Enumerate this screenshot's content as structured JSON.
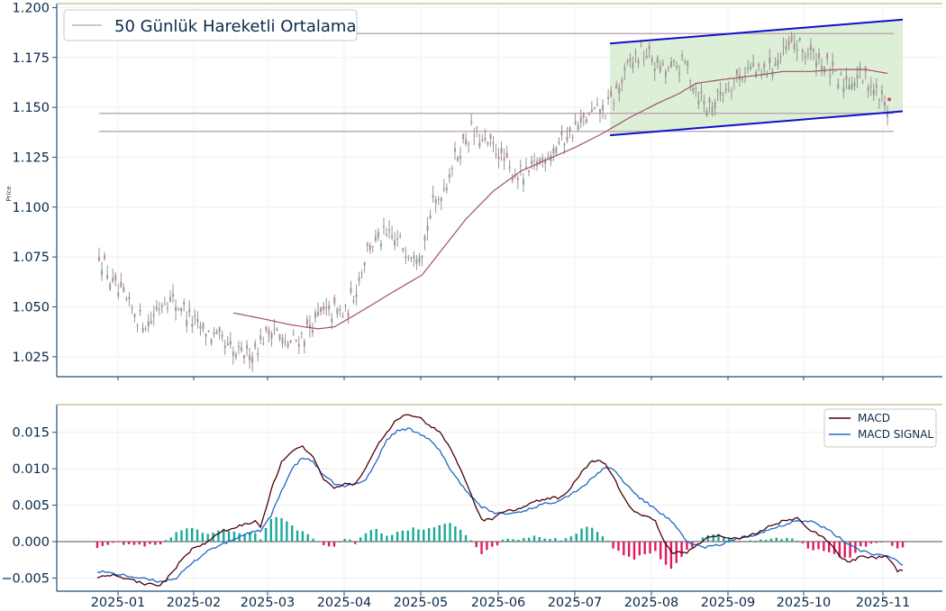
{
  "colors": {
    "axis": "#1f4e79",
    "top_border": "#c9b48a",
    "candle": "#8a8a8a",
    "sma": "#a0526a",
    "hline": "#b9a3b2",
    "channel": "#1010cc",
    "channel_fill": "#cfe8c6",
    "macd": "#4a0010",
    "signal": "#1f68c4",
    "hist_pos": "#1aa99a",
    "hist_neg": "#e3185e",
    "zero": "#8a8a8a"
  },
  "chart_data": [
    {
      "type": "candlestick",
      "ylabel": "Price",
      "ylim": [
        1.015,
        1.202
      ],
      "y_ticks": [
        "1.025",
        "1.050",
        "1.075",
        "1.100",
        "1.125",
        "1.150",
        "1.175",
        "1.200"
      ],
      "x_ticks": [
        "2025-01",
        "2025-02",
        "2025-03",
        "2025-04",
        "2025-05",
        "2025-06",
        "2025-07",
        "2025-08",
        "2025-09",
        "2025-10",
        "2025-11"
      ],
      "legend": [
        "50 Günlük Hareketli Ortalama"
      ],
      "price_anchors": [
        [
          0,
          1.077
        ],
        [
          4,
          1.063
        ],
        [
          8,
          1.055
        ],
        [
          14,
          1.045
        ],
        [
          18,
          1.042
        ],
        [
          24,
          1.055
        ],
        [
          30,
          1.05
        ],
        [
          36,
          1.04
        ],
        [
          42,
          1.035
        ],
        [
          46,
          1.03
        ],
        [
          50,
          1.025
        ],
        [
          56,
          1.028
        ],
        [
          60,
          1.035
        ],
        [
          64,
          1.04
        ],
        [
          68,
          1.03
        ],
        [
          74,
          1.035
        ],
        [
          80,
          1.045
        ],
        [
          86,
          1.048
        ],
        [
          90,
          1.046
        ],
        [
          94,
          1.06
        ],
        [
          98,
          1.08
        ],
        [
          104,
          1.085
        ],
        [
          110,
          1.082
        ],
        [
          114,
          1.078
        ],
        [
          118,
          1.08
        ],
        [
          122,
          1.1
        ],
        [
          126,
          1.11
        ],
        [
          130,
          1.125
        ],
        [
          136,
          1.138
        ],
        [
          140,
          1.132
        ],
        [
          146,
          1.128
        ],
        [
          150,
          1.118
        ],
        [
          156,
          1.115
        ],
        [
          160,
          1.122
        ],
        [
          166,
          1.13
        ],
        [
          170,
          1.135
        ],
        [
          176,
          1.142
        ],
        [
          180,
          1.146
        ],
        [
          186,
          1.15
        ],
        [
          190,
          1.16
        ],
        [
          194,
          1.172
        ],
        [
          198,
          1.178
        ],
        [
          202,
          1.174
        ],
        [
          206,
          1.168
        ],
        [
          210,
          1.17
        ],
        [
          214,
          1.172
        ],
        [
          218,
          1.16
        ],
        [
          222,
          1.15
        ],
        [
          226,
          1.155
        ],
        [
          230,
          1.162
        ],
        [
          234,
          1.166
        ],
        [
          238,
          1.17
        ],
        [
          242,
          1.166
        ],
        [
          246,
          1.172
        ],
        [
          250,
          1.176
        ],
        [
          254,
          1.182
        ],
        [
          258,
          1.178
        ],
        [
          262,
          1.175
        ],
        [
          266,
          1.17
        ],
        [
          270,
          1.162
        ],
        [
          274,
          1.164
        ],
        [
          278,
          1.166
        ],
        [
          282,
          1.162
        ],
        [
          286,
          1.154
        ],
        [
          288,
          1.149
        ]
      ],
      "sma": {
        "start": 49,
        "anchors": [
          [
            49,
            1.047
          ],
          [
            60,
            1.044
          ],
          [
            70,
            1.041
          ],
          [
            80,
            1.039
          ],
          [
            86,
            1.04
          ],
          [
            96,
            1.048
          ],
          [
            108,
            1.058
          ],
          [
            118,
            1.066
          ],
          [
            126,
            1.08
          ],
          [
            134,
            1.094
          ],
          [
            144,
            1.108
          ],
          [
            154,
            1.118
          ],
          [
            164,
            1.124
          ],
          [
            174,
            1.13
          ],
          [
            184,
            1.137
          ],
          [
            194,
            1.145
          ],
          [
            204,
            1.152
          ],
          [
            212,
            1.157
          ],
          [
            218,
            1.162
          ],
          [
            228,
            1.164
          ],
          [
            240,
            1.166
          ],
          [
            250,
            1.168
          ],
          [
            260,
            1.168
          ],
          [
            270,
            1.169
          ],
          [
            280,
            1.169
          ],
          [
            288,
            1.167
          ]
        ]
      },
      "horizontal_lines": [
        1.187,
        1.147,
        1.138
      ],
      "channel": {
        "start_index": 186,
        "end_index": 288,
        "upper": [
          1.182,
          1.194
        ],
        "lower": [
          1.136,
          1.148
        ]
      },
      "last_marker": 1.154
    },
    {
      "type": "line",
      "ylim": [
        -0.0068,
        0.0188
      ],
      "y_ticks": [
        "−0.005",
        "0.000",
        "0.005",
        "0.010",
        "0.015"
      ],
      "x_ticks": [
        "2025-01",
        "2025-02",
        "2025-03",
        "2025-04",
        "2025-05",
        "2025-06",
        "2025-07",
        "2025-08",
        "2025-09",
        "2025-10",
        "2025-11"
      ],
      "series": [
        {
          "name": "MACD",
          "anchors": [
            [
              0,
              -0.0048
            ],
            [
              6,
              -0.0045
            ],
            [
              12,
              -0.0052
            ],
            [
              18,
              -0.0058
            ],
            [
              24,
              -0.006
            ],
            [
              28,
              -0.0045
            ],
            [
              32,
              -0.0025
            ],
            [
              36,
              -0.001
            ],
            [
              42,
              0.0
            ],
            [
              48,
              0.0015
            ],
            [
              54,
              0.0022
            ],
            [
              60,
              0.0028
            ],
            [
              62,
              0.002
            ],
            [
              66,
              0.007
            ],
            [
              70,
              0.011
            ],
            [
              74,
              0.0125
            ],
            [
              78,
              0.013
            ],
            [
              82,
              0.0115
            ],
            [
              86,
              0.0085
            ],
            [
              90,
              0.0072
            ],
            [
              94,
              0.008
            ],
            [
              98,
              0.0078
            ],
            [
              102,
              0.01
            ],
            [
              106,
              0.013
            ],
            [
              110,
              0.015
            ],
            [
              114,
              0.0168
            ],
            [
              118,
              0.0175
            ],
            [
              122,
              0.0172
            ],
            [
              126,
              0.016
            ],
            [
              130,
              0.015
            ],
            [
              134,
              0.013
            ],
            [
              138,
              0.01
            ],
            [
              142,
              0.0065
            ],
            [
              146,
              0.003
            ],
            [
              150,
              0.003
            ],
            [
              154,
              0.004
            ],
            [
              160,
              0.0045
            ],
            [
              166,
              0.0055
            ],
            [
              172,
              0.006
            ],
            [
              176,
              0.006
            ],
            [
              180,
              0.0075
            ],
            [
              184,
              0.0095
            ],
            [
              188,
              0.011
            ],
            [
              192,
              0.011
            ],
            [
              196,
              0.009
            ],
            [
              200,
              0.006
            ],
            [
              204,
              0.004
            ],
            [
              208,
              0.0035
            ],
            [
              212,
              0.003
            ],
            [
              214,
              0.001
            ],
            [
              218,
              -0.0015
            ],
            [
              224,
              -0.0015
            ],
            [
              228,
              -0.0005
            ],
            [
              232,
              0.0005
            ],
            [
              236,
              0.0008
            ],
            [
              240,
              0.0005
            ],
            [
              246,
              0.0005
            ],
            [
              252,
              0.0015
            ],
            [
              258,
              0.0025
            ],
            [
              262,
              0.003
            ],
            [
              266,
              0.0032
            ],
            [
              270,
              0.0018
            ],
            [
              274,
              0.001
            ],
            [
              278,
              0.0
            ],
            [
              282,
              -0.002
            ],
            [
              286,
              -0.0028
            ],
            [
              290,
              -0.002
            ],
            [
              296,
              -0.0022
            ],
            [
              300,
              -0.002
            ],
            [
              304,
              -0.004
            ],
            [
              306,
              -0.004
            ]
          ]
        },
        {
          "name": "MACD SIGNAL",
          "anchors": [
            [
              0,
              -0.004
            ],
            [
              8,
              -0.0045
            ],
            [
              16,
              -0.005
            ],
            [
              24,
              -0.0055
            ],
            [
              30,
              -0.005
            ],
            [
              36,
              -0.003
            ],
            [
              42,
              -0.0012
            ],
            [
              50,
              0.0
            ],
            [
              56,
              0.001
            ],
            [
              62,
              0.0015
            ],
            [
              66,
              0.0035
            ],
            [
              70,
              0.007
            ],
            [
              74,
              0.01
            ],
            [
              78,
              0.0115
            ],
            [
              82,
              0.011
            ],
            [
              86,
              0.009
            ],
            [
              90,
              0.008
            ],
            [
              94,
              0.0075
            ],
            [
              98,
              0.008
            ],
            [
              102,
              0.0085
            ],
            [
              106,
              0.011
            ],
            [
              110,
              0.014
            ],
            [
              114,
              0.0152
            ],
            [
              118,
              0.0155
            ],
            [
              122,
              0.015
            ],
            [
              126,
              0.014
            ],
            [
              130,
              0.0125
            ],
            [
              134,
              0.01
            ],
            [
              140,
              0.007
            ],
            [
              146,
              0.0048
            ],
            [
              150,
              0.004
            ],
            [
              156,
              0.0038
            ],
            [
              162,
              0.0042
            ],
            [
              168,
              0.005
            ],
            [
              174,
              0.0055
            ],
            [
              180,
              0.0065
            ],
            [
              186,
              0.008
            ],
            [
              192,
              0.01
            ],
            [
              196,
              0.01
            ],
            [
              200,
              0.0082
            ],
            [
              206,
              0.006
            ],
            [
              212,
              0.0045
            ],
            [
              218,
              0.0028
            ],
            [
              224,
              0.0
            ],
            [
              230,
              -0.0008
            ],
            [
              236,
              -0.0005
            ],
            [
              242,
              0.0003
            ],
            [
              248,
              0.0008
            ],
            [
              254,
              0.0015
            ],
            [
              260,
              0.0022
            ],
            [
              266,
              0.003
            ],
            [
              272,
              0.0027
            ],
            [
              278,
              0.0015
            ],
            [
              284,
              0.0
            ],
            [
              290,
              -0.0012
            ],
            [
              296,
              -0.0018
            ],
            [
              302,
              -0.0022
            ],
            [
              306,
              -0.0032
            ]
          ]
        }
      ],
      "legend": [
        "MACD",
        "MACD SIGNAL"
      ]
    }
  ]
}
